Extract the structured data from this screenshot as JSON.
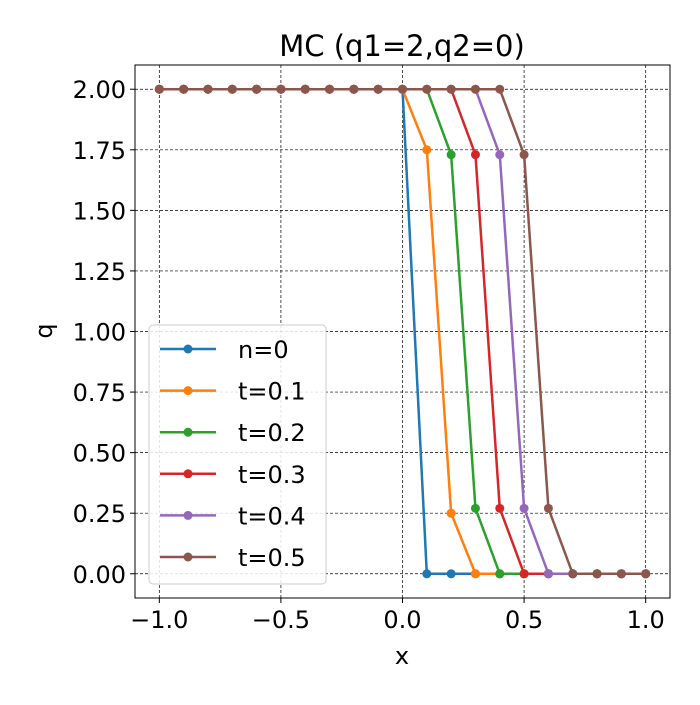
{
  "chart_data": {
    "type": "line",
    "title": "MC (q1=2,q2=0)",
    "xlabel": "x",
    "ylabel": "q",
    "xlim": [
      -1.1,
      1.1
    ],
    "ylim": [
      -0.1,
      2.1
    ],
    "xticks": [
      -1.0,
      -0.5,
      0.0,
      0.5,
      1.0
    ],
    "xtick_labels": [
      "−1.0",
      "−0.5",
      "0.0",
      "0.5",
      "1.0"
    ],
    "yticks": [
      0,
      0.25,
      0.5,
      0.75,
      1.0,
      1.25,
      1.5,
      1.75,
      2.0
    ],
    "ytick_labels": [
      "0.00",
      "0.25",
      "0.50",
      "0.75",
      "1.00",
      "1.25",
      "1.50",
      "1.75",
      "2.00"
    ],
    "grid": true,
    "legend_position": "lower-left",
    "x": [
      -1.0,
      -0.9,
      -0.8,
      -0.7,
      -0.6,
      -0.5,
      -0.4,
      -0.3,
      -0.2,
      -0.1,
      0.0,
      0.1,
      0.2,
      0.3,
      0.4,
      0.5,
      0.6,
      0.7,
      0.8,
      0.9,
      1.0
    ],
    "series": [
      {
        "name": "n=0",
        "color": "#1f77b4",
        "values": [
          2,
          2,
          2,
          2,
          2,
          2,
          2,
          2,
          2,
          2,
          2,
          0,
          0,
          0,
          0,
          0,
          0,
          0,
          0,
          0,
          0
        ]
      },
      {
        "name": "t=0.1",
        "color": "#ff7f0e",
        "values": [
          2,
          2,
          2,
          2,
          2,
          2,
          2,
          2,
          2,
          2,
          2,
          1.75,
          0.25,
          0,
          0,
          0,
          0,
          0,
          0,
          0,
          0
        ]
      },
      {
        "name": "t=0.2",
        "color": "#2ca02c",
        "values": [
          2,
          2,
          2,
          2,
          2,
          2,
          2,
          2,
          2,
          2,
          2,
          2,
          1.73,
          0.27,
          0,
          0,
          0,
          0,
          0,
          0,
          0
        ]
      },
      {
        "name": "t=0.3",
        "color": "#d62728",
        "values": [
          2,
          2,
          2,
          2,
          2,
          2,
          2,
          2,
          2,
          2,
          2,
          2,
          2,
          1.73,
          0.27,
          0,
          0,
          0,
          0,
          0,
          0
        ]
      },
      {
        "name": "t=0.4",
        "color": "#9467bd",
        "values": [
          2,
          2,
          2,
          2,
          2,
          2,
          2,
          2,
          2,
          2,
          2,
          2,
          2,
          2,
          1.73,
          0.27,
          0,
          0,
          0,
          0,
          0
        ]
      },
      {
        "name": "t=0.5",
        "color": "#8c564b",
        "values": [
          2,
          2,
          2,
          2,
          2,
          2,
          2,
          2,
          2,
          2,
          2,
          2,
          2,
          2,
          2,
          1.73,
          0.27,
          0,
          0,
          0,
          0
        ]
      }
    ]
  }
}
